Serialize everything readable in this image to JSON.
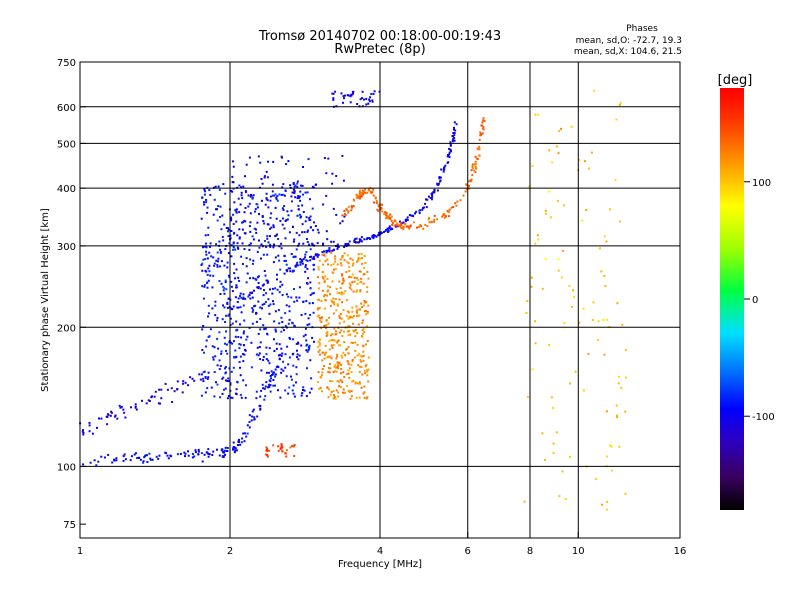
{
  "chart_data": {
    "type": "scatter",
    "title_line1": "Tromsø 20140702 00:18:00-00:19:43",
    "title_line2": "RwPretec (8p)",
    "stats": {
      "heading": "Phases",
      "line1": "mean, sd,O: -72.7, 19.3",
      "line2": "mean, sd,X: 104.6, 21.5"
    },
    "xlabel": "Frequency [MHz]",
    "ylabel": "Stationary phase Virtual Height [km]",
    "x_scale": "log",
    "y_scale": "log",
    "xlim": [
      1,
      16
    ],
    "ylim": [
      70,
      750
    ],
    "x_ticks": [
      1,
      2,
      4,
      6,
      8,
      10,
      16
    ],
    "y_ticks": [
      75,
      100,
      200,
      300,
      400,
      500,
      600,
      750
    ],
    "x_gridlines": [
      2,
      4,
      6,
      8,
      10
    ],
    "y_gridlines": [
      100,
      200,
      300,
      400,
      500,
      600
    ],
    "colorbar": {
      "label": "[deg]",
      "range": [
        -180,
        180
      ],
      "ticks": [
        100,
        0,
        -100
      ],
      "scheme": "rainbow"
    },
    "clusters": [
      {
        "name": "o_trace_lower",
        "f": [
          1.0,
          1.15,
          1.3,
          1.45,
          1.6,
          1.75,
          1.9,
          2.0,
          2.1,
          2.25,
          2.4,
          2.55
        ],
        "h": [
          103,
          104,
          104,
          105,
          106,
          106,
          107,
          108,
          112,
          130,
          150,
          180
        ],
        "spread": 0.04,
        "n": 160,
        "deg": -95
      },
      {
        "name": "low_freq_echo",
        "f": [
          1.0,
          1.1,
          1.2,
          1.4,
          1.6,
          1.8
        ],
        "h": [
          120,
          125,
          130,
          140,
          150,
          160
        ],
        "spread": 0.06,
        "n": 70,
        "deg": -110
      },
      {
        "name": "o_trace_main",
        "f": [
          2.0,
          2.3,
          2.6,
          2.9,
          3.2,
          3.5,
          3.8,
          4.1,
          4.5,
          4.9,
          5.2,
          5.5,
          5.7
        ],
        "h": [
          220,
          245,
          265,
          282,
          295,
          305,
          312,
          322,
          340,
          365,
          400,
          470,
          560
        ],
        "spread": 0.02,
        "n": 220,
        "deg": -100
      },
      {
        "name": "spread_F_region",
        "fmin": 1.75,
        "fmax": 2.95,
        "hmin": 140,
        "hmax": 410,
        "n": 700,
        "deg": -90
      },
      {
        "name": "spread_F_top",
        "fmin": 2.0,
        "fmax": 3.4,
        "hmin": 300,
        "hmax": 470,
        "n": 120,
        "deg": -105
      },
      {
        "name": "x_columns",
        "fmin": 3.0,
        "fmax": 3.8,
        "hmin": 140,
        "hmax": 290,
        "n": 420,
        "deg": 120
      },
      {
        "name": "x_trace_upper",
        "f": [
          3.4,
          3.6,
          3.8,
          4.0,
          4.3,
          4.6,
          5.0,
          5.5,
          6.0,
          6.3,
          6.5
        ],
        "h": [
          350,
          380,
          400,
          360,
          335,
          330,
          335,
          355,
          400,
          470,
          580
        ],
        "spread": 0.03,
        "n": 200,
        "deg": 135
      },
      {
        "name": "x_low_patch",
        "fmin": 2.35,
        "fmax": 2.7,
        "hmin": 105,
        "hmax": 112,
        "n": 30,
        "deg": 150
      },
      {
        "name": "top_echo",
        "fmin": 3.2,
        "fmax": 4.0,
        "hmin": 600,
        "hmax": 650,
        "n": 40,
        "deg": -105
      },
      {
        "name": "scatter_high_freq",
        "fmin": 7.8,
        "fmax": 12.5,
        "hmin": 80,
        "hmax": 650,
        "n": 110,
        "deg": 100
      }
    ]
  }
}
